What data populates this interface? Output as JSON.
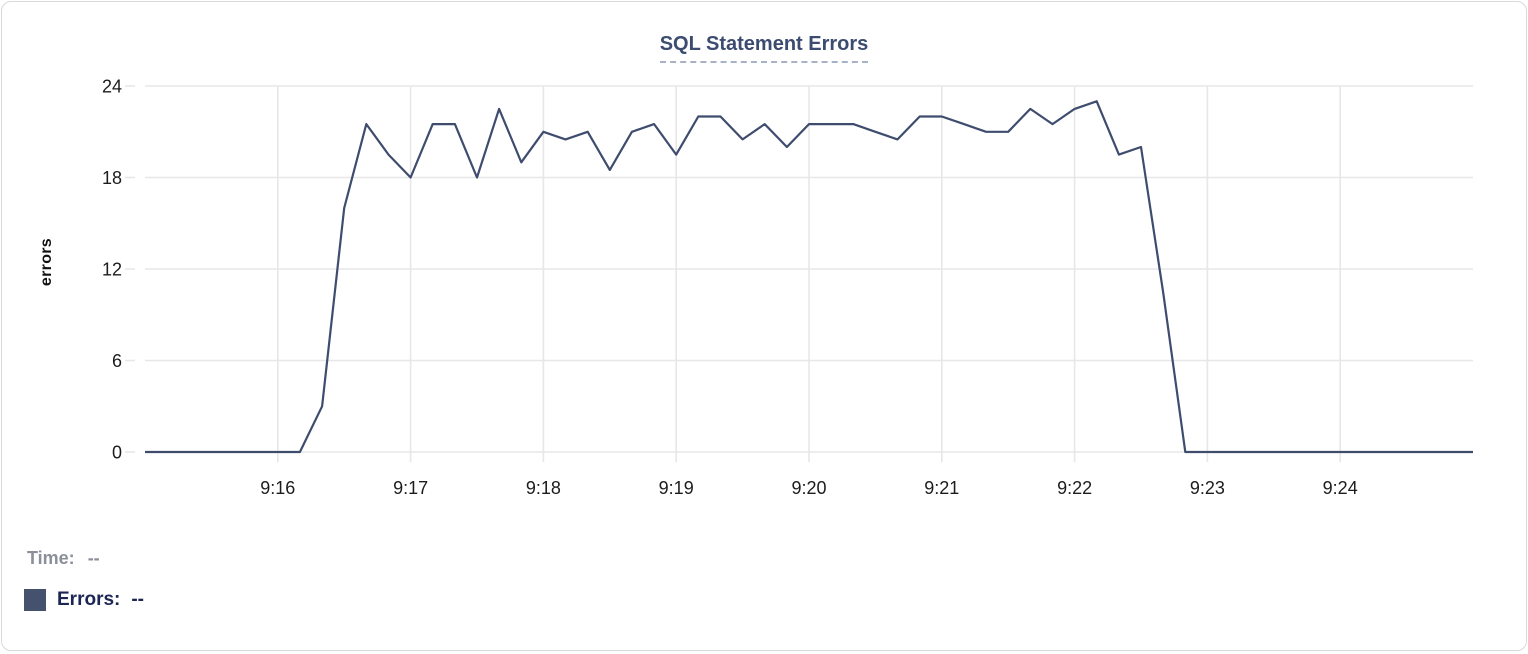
{
  "card": {
    "title": "SQL Statement Errors"
  },
  "chart_data": {
    "type": "line",
    "title": "SQL Statement Errors",
    "xlabel": "",
    "ylabel": "errors",
    "ylim": [
      0,
      24
    ],
    "y_ticks": [
      0,
      6,
      12,
      18,
      24
    ],
    "x_tick_labels": [
      "9:16",
      "9:17",
      "9:18",
      "9:19",
      "9:20",
      "9:21",
      "9:22",
      "9:23",
      "9:24"
    ],
    "x_range": {
      "start": "9:15:00",
      "end": "9:25:00",
      "sample_interval_seconds": 10
    },
    "grid": "on",
    "legend_position": "bottom-left",
    "series": [
      {
        "name": "Errors",
        "color": "#3e4c6e",
        "times": [
          "9:15:00",
          "9:15:10",
          "9:15:20",
          "9:15:30",
          "9:15:40",
          "9:15:50",
          "9:16:00",
          "9:16:10",
          "9:16:20",
          "9:16:30",
          "9:16:40",
          "9:16:50",
          "9:17:00",
          "9:17:10",
          "9:17:20",
          "9:17:30",
          "9:17:40",
          "9:17:50",
          "9:18:00",
          "9:18:10",
          "9:18:20",
          "9:18:30",
          "9:18:40",
          "9:18:50",
          "9:19:00",
          "9:19:10",
          "9:19:20",
          "9:19:30",
          "9:19:40",
          "9:19:50",
          "9:20:00",
          "9:20:10",
          "9:20:20",
          "9:20:30",
          "9:20:40",
          "9:20:50",
          "9:21:00",
          "9:21:10",
          "9:21:20",
          "9:21:30",
          "9:21:40",
          "9:21:50",
          "9:22:00",
          "9:22:10",
          "9:22:20",
          "9:22:30",
          "9:22:40",
          "9:22:50",
          "9:23:00",
          "9:23:10",
          "9:23:20",
          "9:23:30",
          "9:23:40",
          "9:23:50",
          "9:24:00",
          "9:24:10",
          "9:24:20",
          "9:24:30",
          "9:24:40",
          "9:24:50",
          "9:25:00"
        ],
        "values": [
          0,
          0,
          0,
          0,
          0,
          0,
          0,
          0,
          3,
          16,
          21.5,
          19.5,
          18,
          21.5,
          21.5,
          18,
          22.5,
          19,
          21,
          20.5,
          21,
          18.5,
          21,
          21.5,
          19.5,
          22,
          22,
          20.5,
          21.5,
          20,
          21.5,
          21.5,
          21.5,
          21,
          20.5,
          22,
          22,
          21.5,
          21,
          21,
          22.5,
          21.5,
          22.5,
          23,
          19.5,
          20,
          10.5,
          0,
          0,
          0,
          0,
          0,
          0,
          0,
          0,
          0,
          0,
          0,
          0,
          0,
          0
        ]
      }
    ]
  },
  "legend": {
    "time_label": "Time:",
    "time_value": "--",
    "errors_label": "Errors:",
    "errors_value": "--",
    "swatch_color": "#44526e"
  },
  "colors": {
    "title": "#3b4c70",
    "title_underline": "#a8b2c6",
    "line": "#3e4c6e",
    "grid": "#e7e7e7",
    "tick_text": "#1c1c1c",
    "time_text": "#8b8f99",
    "errors_text": "#1b2653"
  }
}
